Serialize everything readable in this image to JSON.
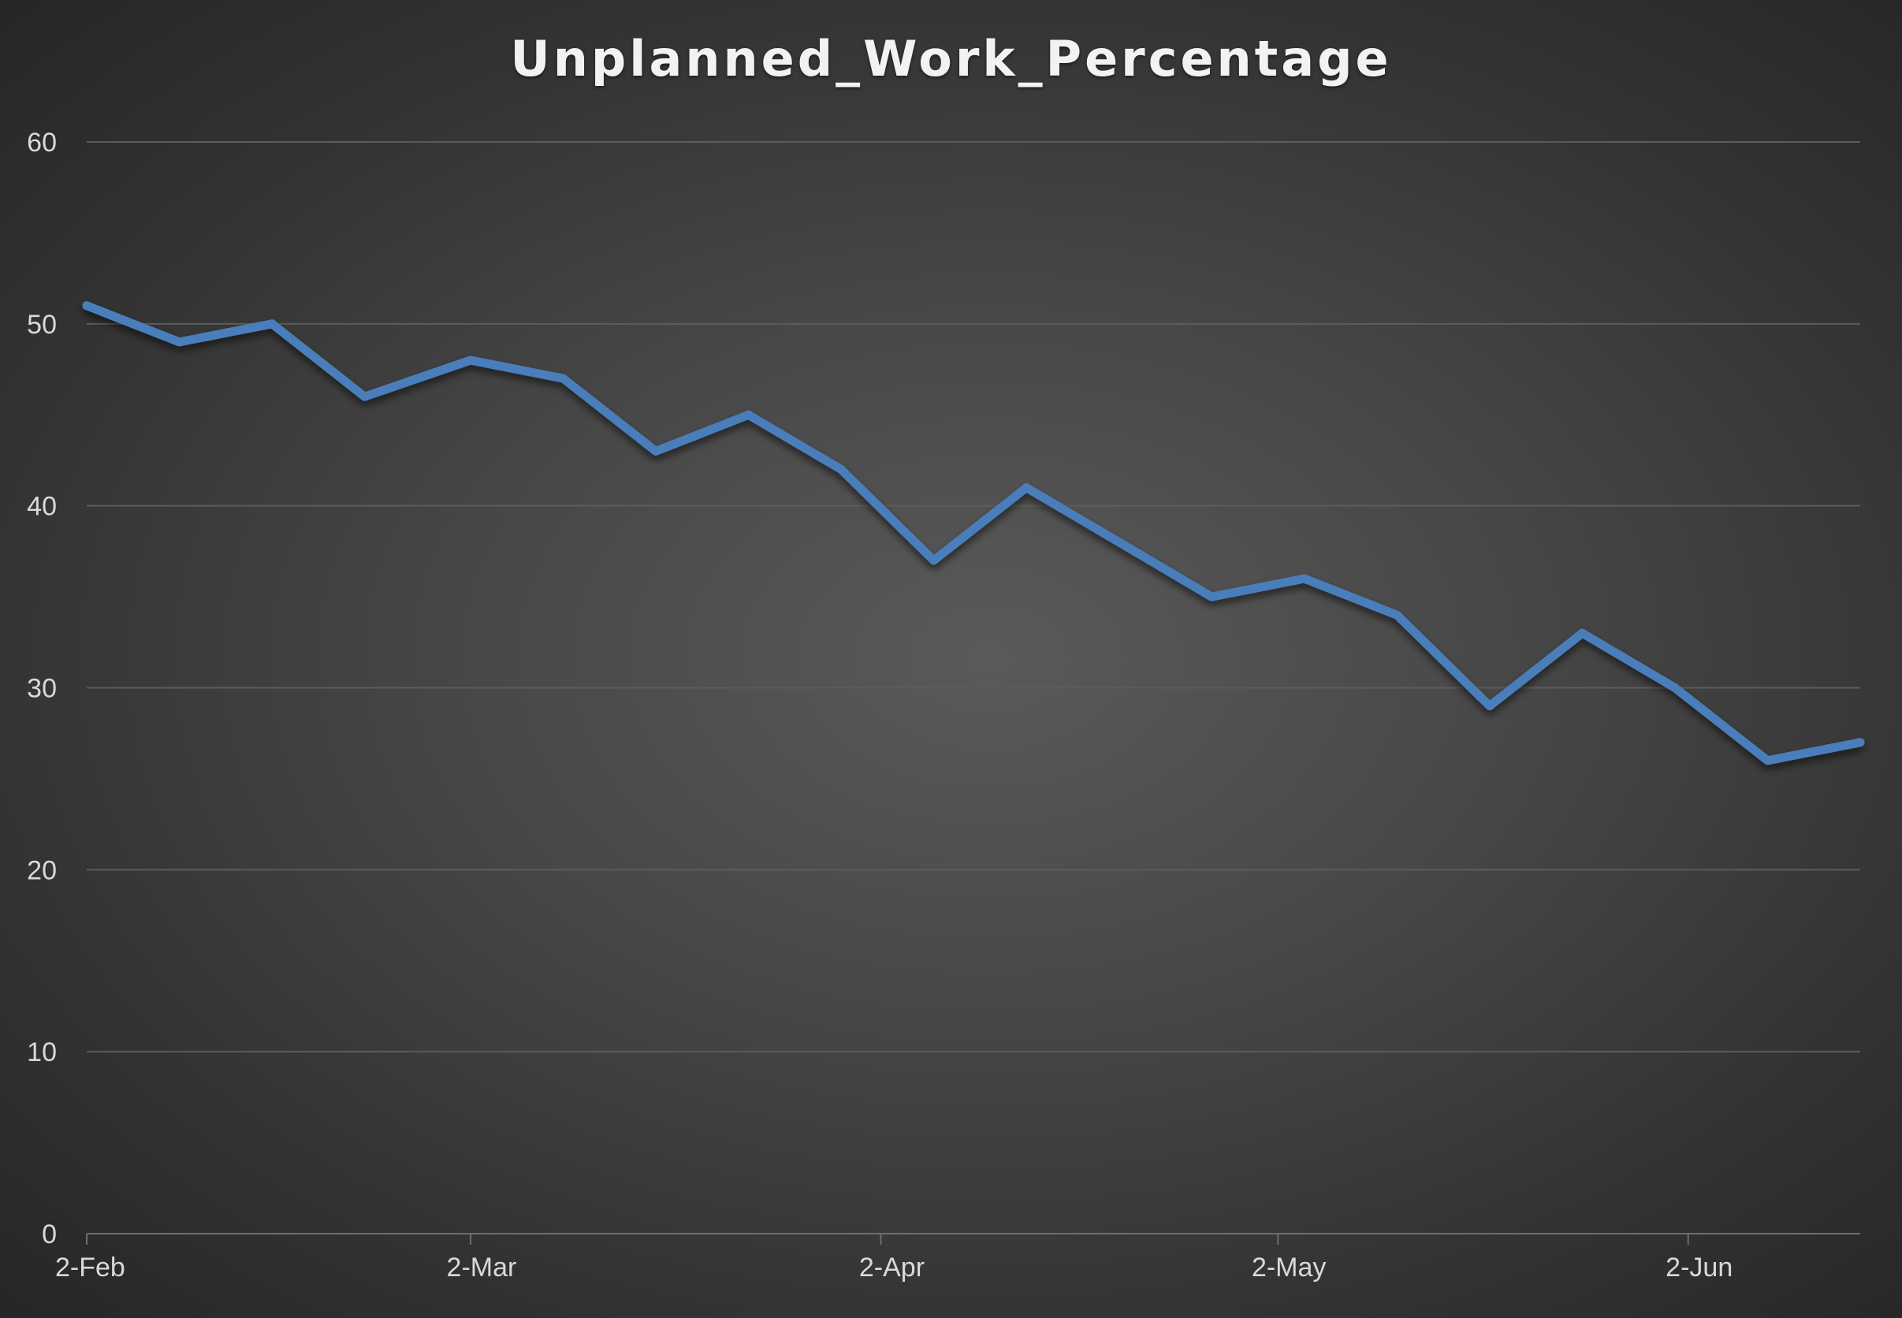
{
  "chart_data": {
    "type": "line",
    "title": "Unplanned_Work_Percentage",
    "xlabel": "",
    "ylabel": "",
    "ylim": [
      0,
      60
    ],
    "yticks": [
      0,
      10,
      20,
      30,
      40,
      50,
      60
    ],
    "xlim": [
      "2-Feb",
      "15-Jun"
    ],
    "xticks": [
      {
        "label": "2-Feb",
        "date": "02-02"
      },
      {
        "label": "2-Mar",
        "date": "03-02"
      },
      {
        "label": "2-Apr",
        "date": "04-02"
      },
      {
        "label": "2-May",
        "date": "05-02"
      },
      {
        "label": "2-Jun",
        "date": "06-02"
      }
    ],
    "grid": true,
    "legend": "none",
    "line_color": "#4a7ebb",
    "series": [
      {
        "x": [
          "02-02",
          "02-09",
          "02-16",
          "02-23",
          "03-02",
          "03-09",
          "03-16",
          "03-23",
          "03-30",
          "04-06",
          "04-13",
          "04-20",
          "04-27",
          "05-04",
          "05-11",
          "05-18",
          "05-25",
          "06-01",
          "06-08",
          "06-15"
        ],
        "values": [
          51,
          49,
          50,
          46,
          48,
          47,
          43,
          45,
          42,
          37,
          41,
          38,
          35,
          36,
          34,
          29,
          33,
          30,
          26,
          27
        ]
      }
    ]
  }
}
